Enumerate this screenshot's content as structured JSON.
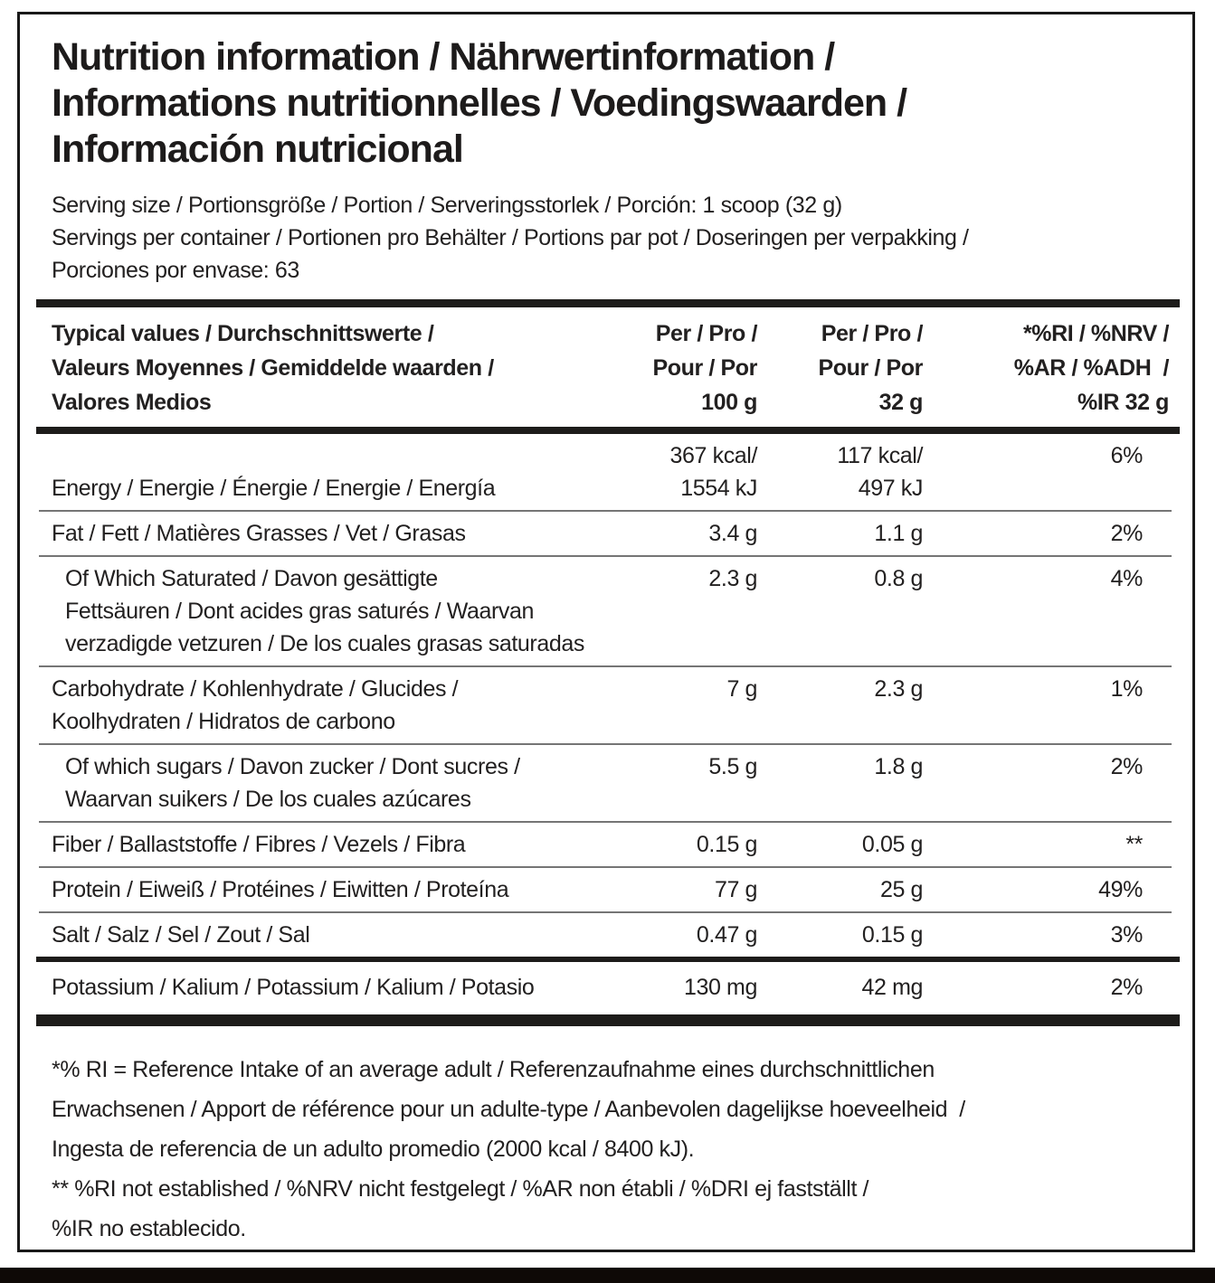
{
  "title": {
    "lines": [
      "Nutrition information / Nährwertinformation /",
      "Informations nutritionnelles / Voedingswaarden /",
      "Información nutricional"
    ]
  },
  "serving": {
    "size_line": "Serving size / Portionsgröße / Portion / Serveringsstorlek / Porción: 1 scoop (32 g)",
    "per_container_lines": [
      "Servings per container / Portionen pro Behälter / Portions par pot / Doseringen per verpakking /",
      "Porciones por envase: 63"
    ]
  },
  "table": {
    "header": {
      "col1_lines": [
        "Typical values / Durchschnittswerte /",
        "Valeurs Moyennes / Gemiddelde waarden /",
        "Valores Medios"
      ],
      "col2_lines": [
        "Per / Pro /",
        "Pour / Por",
        "100 g"
      ],
      "col3_lines": [
        "Per / Pro /",
        "Pour / Por",
        "32 g"
      ],
      "col4_lines": [
        "*%RI / %NRV /",
        "%AR / %ADH  /",
        "%IR 32 g"
      ]
    },
    "rows": [
      {
        "name": "energy",
        "label_lines": [
          "Energy / Energie / Énergie / Energie / Energía"
        ],
        "per100_lines": [
          "367 kcal/",
          "1554 kJ"
        ],
        "per32_lines": [
          "117 kcal/",
          "497 kJ"
        ],
        "ri": "6%"
      },
      {
        "name": "fat",
        "label_lines": [
          "Fat / Fett / Matières Grasses / Vet / Grasas"
        ],
        "per100_lines": [
          "3.4 g"
        ],
        "per32_lines": [
          "1.1 g"
        ],
        "ri": "2%"
      },
      {
        "name": "saturated-fat",
        "label_lines": [
          "Of Which Saturated / Davon gesättigte",
          "Fettsäuren / Dont acides gras saturés / Waarvan",
          "verzadigde vetzuren / De los cuales grasas saturadas"
        ],
        "per100_lines": [
          "2.3 g"
        ],
        "per32_lines": [
          "0.8 g"
        ],
        "ri": "4%"
      },
      {
        "name": "carbohydrate",
        "label_lines": [
          "Carbohydrate / Kohlenhydrate / Glucides /",
          "Koolhydraten / Hidratos de carbono"
        ],
        "per100_lines": [
          "7 g"
        ],
        "per32_lines": [
          "2.3 g"
        ],
        "ri": "1%"
      },
      {
        "name": "sugars",
        "label_lines": [
          "Of which sugars / Davon zucker / Dont sucres /",
          "Waarvan suikers / De los cuales azúcares"
        ],
        "per100_lines": [
          "5.5 g"
        ],
        "per32_lines": [
          "1.8 g"
        ],
        "ri": "2%"
      },
      {
        "name": "fiber",
        "label_lines": [
          "Fiber / Ballaststoffe / Fibres / Vezels / Fibra"
        ],
        "per100_lines": [
          "0.15 g"
        ],
        "per32_lines": [
          "0.05 g"
        ],
        "ri": "**"
      },
      {
        "name": "protein",
        "label_lines": [
          "Protein / Eiweiß / Protéines / Eiwitten / Proteína"
        ],
        "per100_lines": [
          "77 g"
        ],
        "per32_lines": [
          "25 g"
        ],
        "ri": "49%"
      },
      {
        "name": "salt",
        "label_lines": [
          "Salt / Salz / Sel / Zout / Sal"
        ],
        "per100_lines": [
          "0.47 g"
        ],
        "per32_lines": [
          "0.15 g"
        ],
        "ri": "3%"
      },
      {
        "name": "potassium",
        "label_lines": [
          "Potassium / Kalium / Potassium / Kalium / Potasio"
        ],
        "per100_lines": [
          "130 mg"
        ],
        "per32_lines": [
          "42 mg"
        ],
        "ri": "2%"
      }
    ]
  },
  "footnotes": {
    "lines": [
      "*% RI = Reference Intake of an average adult / Referenzaufnahme eines durchschnittlichen",
      "Erwachsenen / Apport de référence pour un adulte-type / Aanbevolen dagelijkse hoeveelheid  /",
      "Ingesta de referencia de un adulto promedio (2000 kcal / 8400 kJ).",
      "** %RI not established / %NRV nicht festgelegt / %AR non établi / %DRI ej fastställt /",
      "%IR no establecido."
    ]
  },
  "colors": {
    "text": "#222020",
    "thick_bar": "#1d1c1a",
    "thin_separator": "#757575",
    "card_border": "#181818",
    "bottom_strip": "#0e0906"
  }
}
